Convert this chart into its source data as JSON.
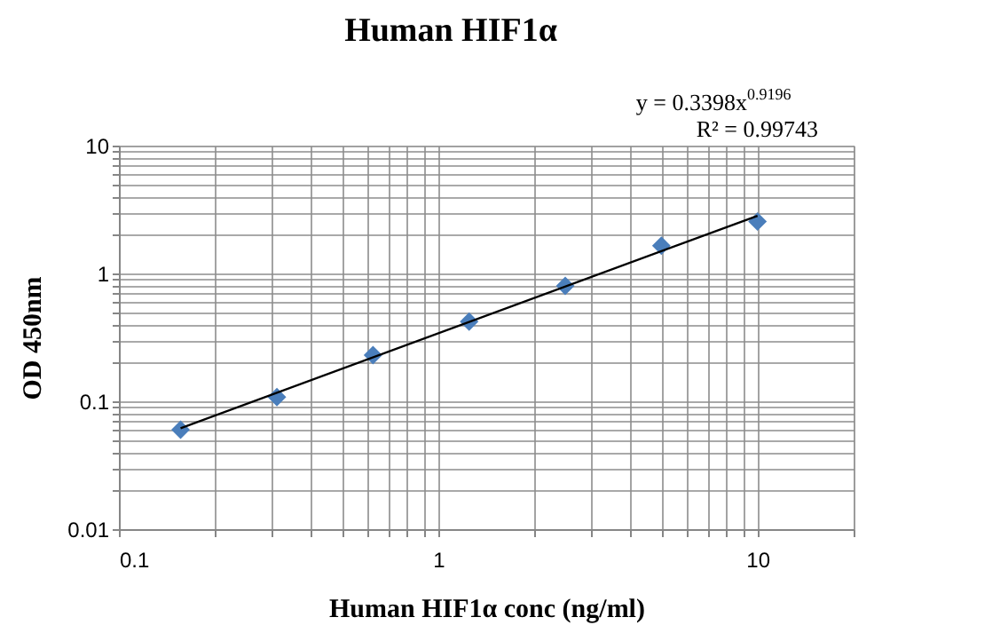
{
  "chart_data": {
    "type": "scatter",
    "title": "Human HIF1α",
    "xlabel": "Human HIF1α conc (ng/ml)",
    "ylabel": "OD 450nm",
    "annotations": [
      "y = 0.3398x$^{0.9196}$",
      "R² = 0.99743"
    ],
    "log": "xy",
    "grid": true,
    "marker": "diamond",
    "xlim": [
      0.1,
      20
    ],
    "ylim": [
      0.01,
      10
    ],
    "xticks": [
      0.1,
      {
        "value": 0.2,
        "label": null
      },
      {
        "value": 0.3,
        "label": null
      },
      {
        "value": 0.4,
        "label": null
      },
      {
        "value": 0.5,
        "label": null
      },
      {
        "value": 0.6,
        "label": null
      },
      {
        "value": 0.7,
        "label": null
      },
      {
        "value": 0.8,
        "label": null
      },
      {
        "value": 0.9,
        "label": null
      },
      1,
      {
        "value": 2,
        "label": null
      },
      {
        "value": 3,
        "label": null
      },
      {
        "value": 4,
        "label": null
      },
      {
        "value": 5,
        "label": null
      },
      {
        "value": 6,
        "label": null
      },
      {
        "value": 7,
        "label": null
      },
      {
        "value": 8,
        "label": null
      },
      {
        "value": 9,
        "label": null
      },
      10,
      {
        "value": 20,
        "label": null
      }
    ],
    "yticks": [
      0.01,
      {
        "value": 0.02,
        "label": null
      },
      {
        "value": 0.03,
        "label": null
      },
      {
        "value": 0.04,
        "label": null
      },
      {
        "value": 0.05,
        "label": null
      },
      {
        "value": 0.06,
        "label": null
      },
      {
        "value": 0.07,
        "label": null
      },
      {
        "value": 0.08,
        "label": null
      },
      {
        "value": 0.09,
        "label": null
      },
      0.1,
      {
        "value": 0.2,
        "label": null
      },
      {
        "value": 0.3,
        "label": null
      },
      {
        "value": 0.4,
        "label": null
      },
      {
        "value": 0.5,
        "label": null
      },
      {
        "value": 0.6,
        "label": null
      },
      {
        "value": 0.7,
        "label": null
      },
      {
        "value": 0.8,
        "label": null
      },
      {
        "value": 0.9,
        "label": null
      },
      1,
      {
        "value": 2,
        "label": null
      },
      {
        "value": 3,
        "label": null
      },
      {
        "value": 4,
        "label": null
      },
      {
        "value": 5,
        "label": null
      },
      {
        "value": 6,
        "label": null
      },
      {
        "value": 7,
        "label": null
      },
      {
        "value": 8,
        "label": null
      },
      {
        "value": 9,
        "label": null
      },
      10
    ],
    "x": [
      0.156,
      0.3125,
      0.625,
      1.25,
      2.5,
      5,
      10
    ],
    "series": [
      {
        "color": "#4a7ebb",
        "values": [
          0.06,
          0.108,
          0.23,
          0.42,
          0.8,
          1.65,
          2.55
        ]
      },
      {
        "type": "line",
        "color": "#000000",
        "marker": "none",
        "line_style": "solid",
        "x": [
          0.156,
          10
        ],
        "values": [
          0.0616,
          2.824
        ]
      }
    ]
  }
}
